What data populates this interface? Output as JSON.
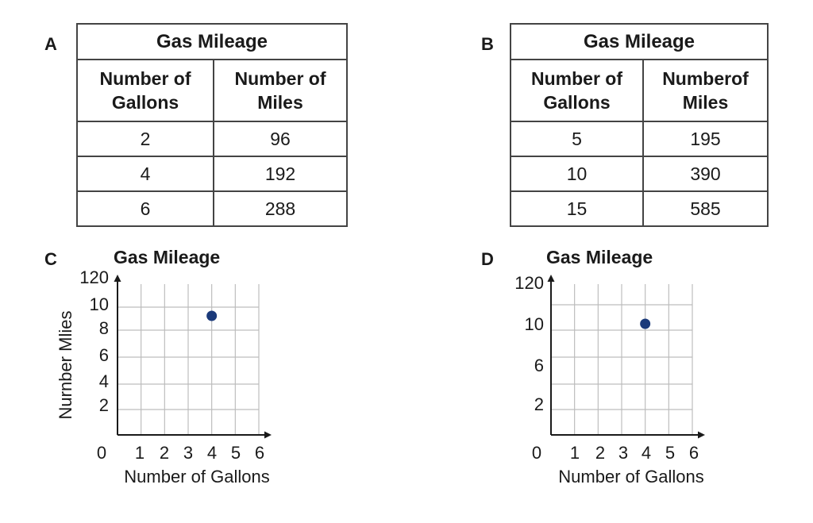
{
  "panels": {
    "a": {
      "letter": "A",
      "title": "Gas Mileage",
      "col1": "Number of Gallons",
      "col2": "Number of Miles",
      "rows": [
        [
          "2",
          "96"
        ],
        [
          "4",
          "192"
        ],
        [
          "6",
          "288"
        ]
      ]
    },
    "b": {
      "letter": "B",
      "title": "Gas Mileage",
      "col1": "Number of Gallons",
      "col2": "Numberof Miles",
      "rows": [
        [
          "5",
          "195"
        ],
        [
          "10",
          "390"
        ],
        [
          "15",
          "585"
        ]
      ]
    },
    "c": {
      "letter": "C",
      "title": "Gas Mileage"
    },
    "d": {
      "letter": "D",
      "title": "Gas Mileage"
    }
  },
  "chart_data": [
    {
      "type": "table",
      "title": "Gas Mileage",
      "columns": [
        "Number of Gallons",
        "Number of Miles"
      ],
      "rows": [
        [
          2,
          96
        ],
        [
          4,
          192
        ],
        [
          6,
          288
        ]
      ]
    },
    {
      "type": "table",
      "title": "Gas Mileage",
      "columns": [
        "Number of Gallons",
        "Numberof Miles"
      ],
      "rows": [
        [
          5,
          195
        ],
        [
          10,
          390
        ],
        [
          15,
          585
        ]
      ]
    },
    {
      "type": "scatter",
      "title": "Gas Mileage",
      "xlabel": "Number of Gallons",
      "ylabel": "Nurnber Mlies",
      "xlim": [
        0,
        6
      ],
      "x_ticks": [
        "0",
        "1",
        "2",
        "3",
        "4",
        "5",
        "6"
      ],
      "y_ticks": [
        "2",
        "4",
        "6",
        "8",
        "10",
        "120"
      ],
      "grid": true,
      "points": [
        {
          "x": 4,
          "y": 9
        }
      ],
      "color": "#1b3a7a"
    },
    {
      "type": "scatter",
      "title": "Gas Mileage",
      "xlabel": "Number of Gallons",
      "ylabel": "",
      "xlim": [
        0,
        6
      ],
      "x_ticks": [
        "0",
        "1",
        "2",
        "3",
        "4",
        "5",
        "6"
      ],
      "y_ticks": [
        "2",
        "6",
        "10",
        "120"
      ],
      "grid": true,
      "points": [
        {
          "x": 4,
          "y": 10
        }
      ],
      "color": "#1b3a7a"
    }
  ]
}
